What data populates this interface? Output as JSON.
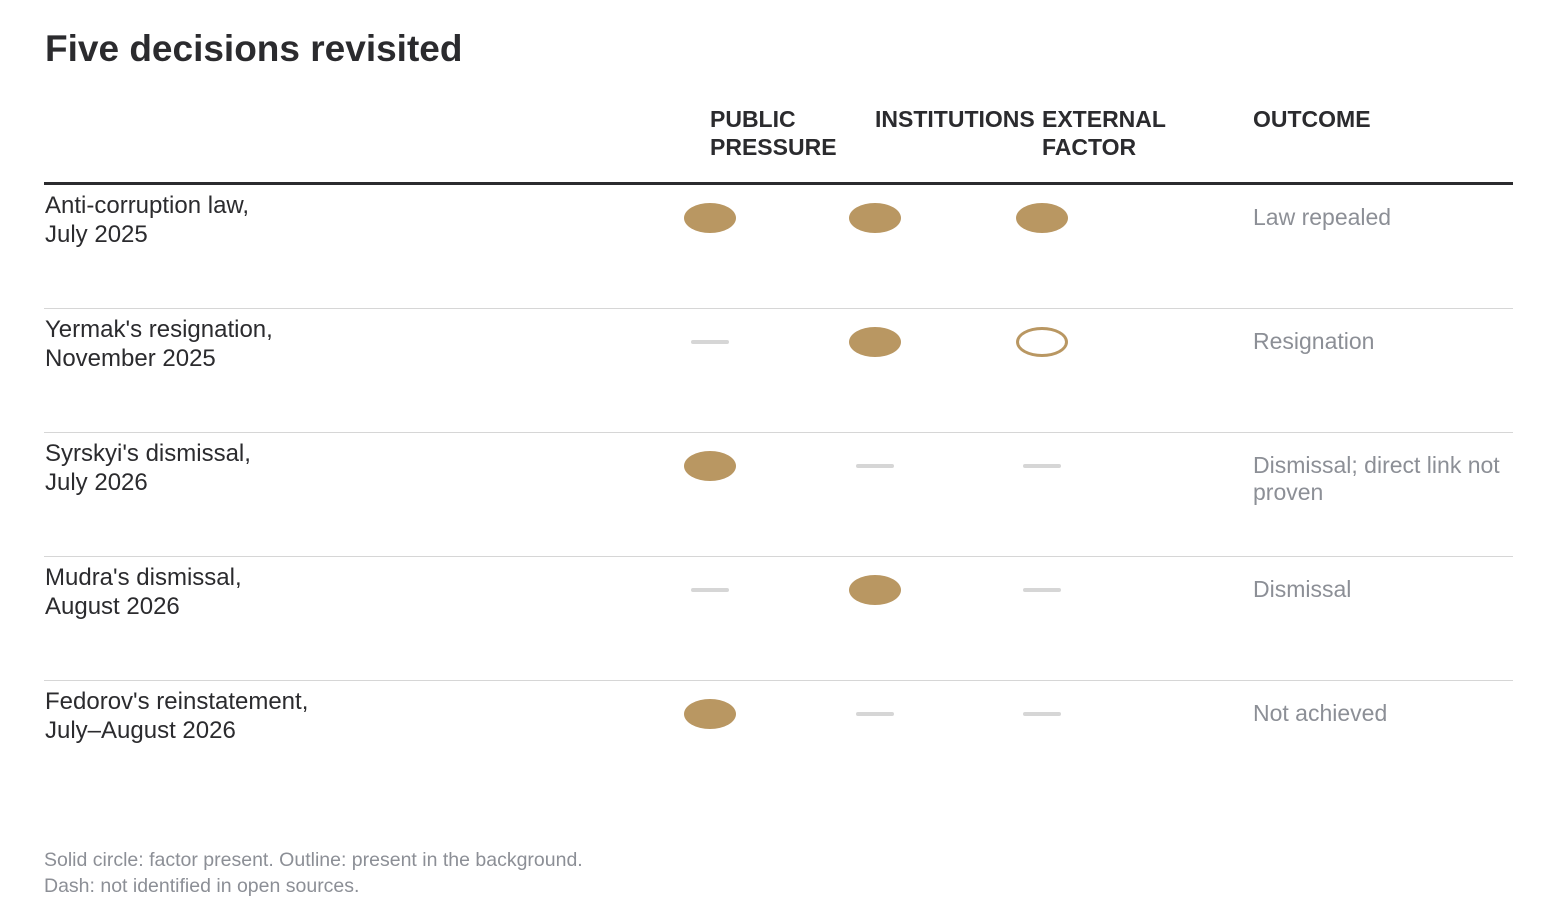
{
  "title": "Five decisions revisited",
  "columns": {
    "public_pressure": "PUBLIC\nPRESSURE",
    "institutions": "INSTITUTIONS",
    "external_factor": "EXTERNAL\nFACTOR",
    "outcome": "OUTCOME"
  },
  "colors": {
    "marker": "#b99762",
    "dash": "#d6d6d6",
    "muted_text": "#8c8f96",
    "text": "#2b2b2e"
  },
  "rows": [
    {
      "label_line1": "Anti-corruption law,",
      "label_line2": "July 2025",
      "public_pressure": "solid",
      "institutions": "solid",
      "external_factor": "solid",
      "outcome": "Law repealed"
    },
    {
      "label_line1": "Yermak's resignation,",
      "label_line2": "November 2025",
      "public_pressure": "dash",
      "institutions": "solid",
      "external_factor": "outline",
      "outcome": "Resignation"
    },
    {
      "label_line1": "Syrskyi's dismissal,",
      "label_line2": "July 2026",
      "public_pressure": "solid",
      "institutions": "dash",
      "external_factor": "dash",
      "outcome": "Dismissal; direct link not proven"
    },
    {
      "label_line1": "Mudra's dismissal,",
      "label_line2": "August 2026",
      "public_pressure": "dash",
      "institutions": "solid",
      "external_factor": "dash",
      "outcome": "Dismissal"
    },
    {
      "label_line1": "Fedorov's reinstatement,",
      "label_line2": "July–August 2026",
      "public_pressure": "solid",
      "institutions": "dash",
      "external_factor": "dash",
      "outcome": "Not achieved"
    }
  ],
  "footnote": {
    "line1": "Solid circle: factor present. Outline: present in the background.",
    "line2": "Dash: not identified in open sources."
  }
}
